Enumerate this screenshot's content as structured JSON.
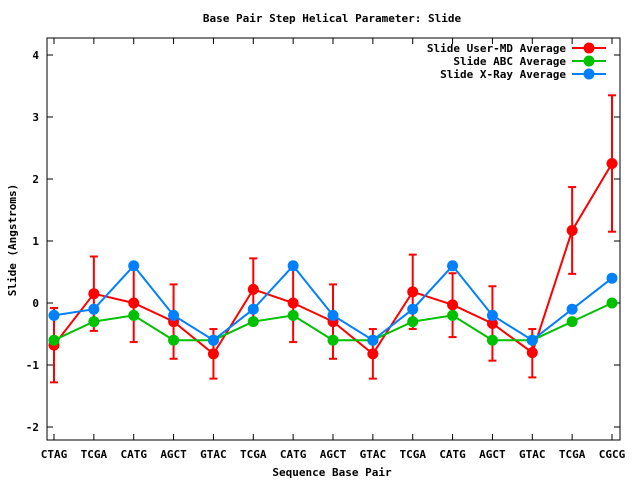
{
  "chart_data": {
    "type": "line",
    "title": "Base Pair Step Helical Parameter: Slide",
    "xlabel": "Sequence Base Pair",
    "ylabel": "Slide (Angstroms)",
    "ylim": [
      -2.2,
      4.3
    ],
    "yticks": [
      -2,
      -1,
      0,
      1,
      2,
      3,
      4
    ],
    "grid": false,
    "legend_position": "top-right",
    "categories": [
      "CTAG",
      "TCGA",
      "CATG",
      "AGCT",
      "GTAC",
      "TCGA",
      "CATG",
      "AGCT",
      "GTAC",
      "TCGA",
      "CATG",
      "AGCT",
      "GTAC",
      "TCGA",
      "CGCG"
    ],
    "series": [
      {
        "name": "Slide User-MD Average",
        "color": "#ff0000",
        "values": [
          -0.68,
          0.15,
          0.0,
          -0.3,
          -0.82,
          0.22,
          0.0,
          -0.3,
          -0.82,
          0.18,
          -0.03,
          -0.33,
          -0.8,
          1.17,
          2.25
        ],
        "error_low": [
          -1.28,
          -0.45,
          -0.63,
          -0.9,
          -1.22,
          -0.28,
          -0.63,
          -0.9,
          -1.22,
          -0.42,
          -0.55,
          -0.93,
          -1.2,
          0.47,
          1.15
        ],
        "error_high": [
          -0.08,
          0.75,
          0.63,
          0.3,
          -0.42,
          0.72,
          0.63,
          0.3,
          -0.42,
          0.78,
          0.48,
          0.27,
          -0.42,
          1.87,
          3.35
        ]
      },
      {
        "name": "Slide ABC Average",
        "color": "#00c000",
        "values": [
          -0.6,
          -0.3,
          -0.2,
          -0.6,
          -0.6,
          -0.3,
          -0.2,
          -0.6,
          -0.6,
          -0.3,
          -0.2,
          -0.6,
          -0.6,
          -0.3,
          0.0
        ]
      },
      {
        "name": "Slide X-Ray Average",
        "color": "#0080ff",
        "values": [
          -0.2,
          -0.1,
          0.6,
          -0.2,
          -0.6,
          -0.1,
          0.6,
          -0.2,
          -0.6,
          -0.1,
          0.6,
          -0.2,
          -0.6,
          -0.1,
          0.4
        ]
      }
    ]
  }
}
